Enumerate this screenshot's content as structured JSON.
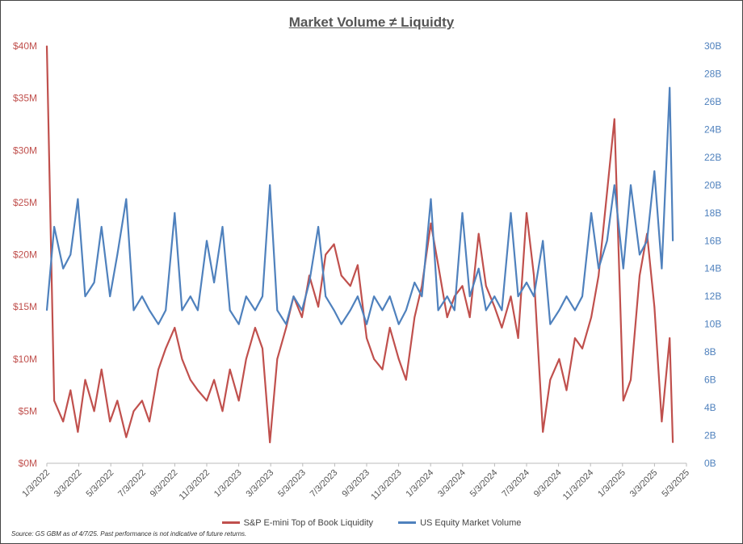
{
  "chart_data": {
    "type": "line",
    "title": "Market Volume ≠ Liquidty",
    "x_ticks": [
      "1/3/2022",
      "3/3/2022",
      "5/3/2022",
      "7/3/2022",
      "9/3/2022",
      "11/3/2022",
      "1/3/2023",
      "3/3/2023",
      "5/3/2023",
      "7/3/2023",
      "9/3/2023",
      "11/3/2023",
      "1/3/2024",
      "3/3/2024",
      "5/3/2024",
      "7/3/2024",
      "9/3/2024",
      "11/3/2024",
      "1/3/2025",
      "3/3/2025",
      "5/3/2025"
    ],
    "xlim": [
      "2022-01-03",
      "2025-05-03"
    ],
    "y_left": {
      "ticks": [
        "$0M",
        "$5M",
        "$10M",
        "$15M",
        "$20M",
        "$25M",
        "$30M",
        "$35M",
        "$40M"
      ],
      "ylim": [
        0,
        40
      ],
      "unit": "$M",
      "color": "#C0504D"
    },
    "y_right": {
      "ticks": [
        "0B",
        "2B",
        "4B",
        "6B",
        "8B",
        "10B",
        "12B",
        "14B",
        "16B",
        "18B",
        "20B",
        "22B",
        "24B",
        "26B",
        "28B",
        "30B"
      ],
      "ylim": [
        0,
        30
      ],
      "unit": "B",
      "color": "#4F81BD"
    },
    "grid": false,
    "legend_position": "bottom",
    "dates": [
      "2022-01-03",
      "2022-01-17",
      "2022-02-03",
      "2022-02-17",
      "2022-03-03",
      "2022-03-17",
      "2022-04-03",
      "2022-04-17",
      "2022-05-03",
      "2022-05-17",
      "2022-06-03",
      "2022-06-17",
      "2022-07-03",
      "2022-07-17",
      "2022-08-03",
      "2022-08-17",
      "2022-09-03",
      "2022-09-17",
      "2022-10-03",
      "2022-10-17",
      "2022-11-03",
      "2022-11-17",
      "2022-12-03",
      "2022-12-17",
      "2023-01-03",
      "2023-01-17",
      "2023-02-03",
      "2023-02-17",
      "2023-03-03",
      "2023-03-17",
      "2023-04-03",
      "2023-04-17",
      "2023-05-03",
      "2023-05-17",
      "2023-06-03",
      "2023-06-17",
      "2023-07-03",
      "2023-07-17",
      "2023-08-03",
      "2023-08-17",
      "2023-09-03",
      "2023-09-17",
      "2023-10-03",
      "2023-10-17",
      "2023-11-03",
      "2023-11-17",
      "2023-12-03",
      "2023-12-17",
      "2024-01-03",
      "2024-01-17",
      "2024-02-03",
      "2024-02-17",
      "2024-03-03",
      "2024-03-17",
      "2024-04-03",
      "2024-04-17",
      "2024-05-03",
      "2024-05-17",
      "2024-06-03",
      "2024-06-17",
      "2024-07-03",
      "2024-07-17",
      "2024-08-03",
      "2024-08-17",
      "2024-09-03",
      "2024-09-17",
      "2024-10-03",
      "2024-10-17",
      "2024-11-03",
      "2024-11-17",
      "2024-12-03",
      "2024-12-17",
      "2025-01-03",
      "2025-01-17",
      "2025-02-03",
      "2025-02-17",
      "2025-03-03",
      "2025-03-17",
      "2025-04-01",
      "2025-04-07"
    ],
    "series": [
      {
        "name": "S&P E-mini Top of Book Liquidity",
        "axis": "left",
        "color": "#C0504D",
        "values": [
          40,
          6,
          4,
          7,
          3,
          8,
          5,
          9,
          4,
          6,
          2.5,
          5,
          6,
          4,
          9,
          11,
          13,
          10,
          8,
          7,
          6,
          8,
          5,
          9,
          6,
          10,
          13,
          11,
          2,
          10,
          13,
          16,
          14,
          18,
          15,
          20,
          21,
          18,
          17,
          19,
          12,
          10,
          9,
          13,
          10,
          8,
          14,
          17,
          23,
          19,
          14,
          16,
          17,
          14,
          22,
          17,
          15,
          13,
          16,
          12,
          24,
          18,
          3,
          8,
          10,
          7,
          12,
          11,
          14,
          18,
          26,
          33,
          6,
          8,
          18,
          22,
          15,
          4,
          12,
          2
        ]
      },
      {
        "name": "US Equity Market Volume",
        "axis": "right",
        "color": "#4F81BD",
        "values": [
          11,
          17,
          14,
          15,
          19,
          12,
          13,
          17,
          12,
          15,
          19,
          11,
          12,
          11,
          10,
          11,
          18,
          11,
          12,
          11,
          16,
          13,
          17,
          11,
          10,
          12,
          11,
          12,
          20,
          11,
          10,
          12,
          11,
          13,
          17,
          12,
          11,
          10,
          11,
          12,
          10,
          12,
          11,
          12,
          10,
          11,
          13,
          12,
          19,
          11,
          12,
          11,
          18,
          12,
          14,
          11,
          12,
          11,
          18,
          12,
          13,
          12,
          16,
          10,
          11,
          12,
          11,
          12,
          18,
          14,
          16,
          20,
          14,
          20,
          15,
          16,
          21,
          14,
          27,
          16
        ]
      }
    ]
  },
  "source": "Source: GS GBM as of 4/7/25. Past performance is not indicative of future returns."
}
